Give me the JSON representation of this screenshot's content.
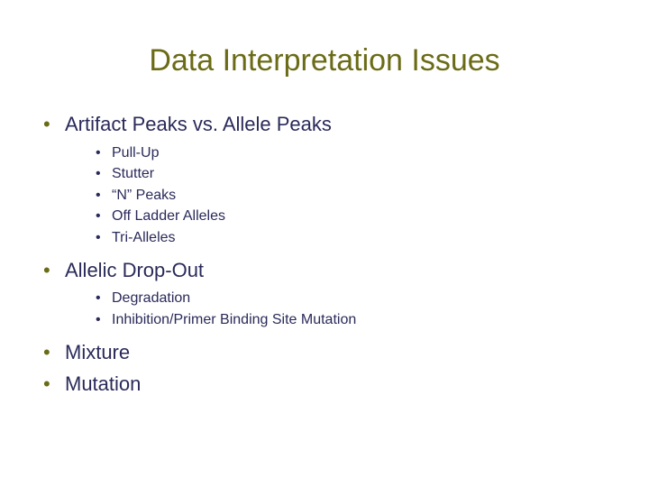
{
  "colors": {
    "title": "#6b6b17",
    "body_text": "#2a2a5a",
    "lvl1_bullet": "#6b6b17",
    "lvl2_bullet": "#2a2a5a",
    "background": "#ffffff"
  },
  "typography": {
    "title_fontsize": 34,
    "lvl1_fontsize": 22,
    "lvl2_fontsize": 16,
    "font_family": "Arial"
  },
  "slide": {
    "title": "Data Interpretation Issues",
    "items": [
      {
        "text": "Artifact Peaks vs. Allele Peaks",
        "sub": [
          "Pull-Up",
          "Stutter",
          "“N” Peaks",
          "Off Ladder Alleles",
          "Tri-Alleles"
        ]
      },
      {
        "text": "Allelic Drop-Out",
        "sub": [
          "Degradation",
          "Inhibition/Primer Binding Site Mutation"
        ]
      },
      {
        "text": "Mixture",
        "sub": []
      },
      {
        "text": "Mutation",
        "sub": []
      }
    ]
  }
}
